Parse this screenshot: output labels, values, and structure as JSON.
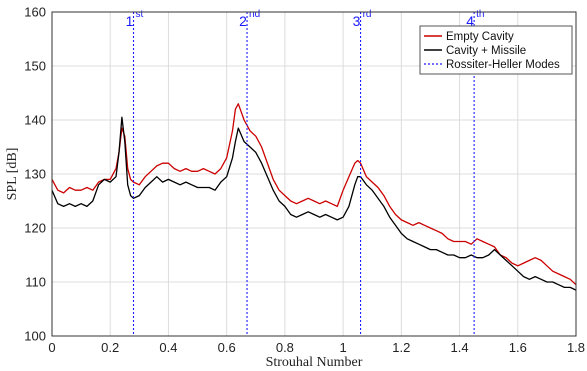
{
  "chart_data": {
    "type": "line",
    "xlabel": "Strouhal Number",
    "ylabel": "SPL [dB]",
    "xlim": [
      0,
      1.8
    ],
    "ylim": [
      100,
      160
    ],
    "xticks": [
      "0",
      "0.2",
      "0.4",
      "0.6",
      "0.8",
      "1",
      "1.2",
      "1.4",
      "1.6",
      "1.8"
    ],
    "yticks": [
      "100",
      "110",
      "120",
      "130",
      "140",
      "150",
      "160"
    ],
    "grid": true,
    "legend_position": "top-right",
    "series": [
      {
        "name": "Empty Cavity",
        "color": "#cc0000",
        "x": [
          0,
          0.02,
          0.04,
          0.06,
          0.08,
          0.1,
          0.12,
          0.14,
          0.16,
          0.18,
          0.2,
          0.22,
          0.23,
          0.24,
          0.25,
          0.26,
          0.27,
          0.28,
          0.3,
          0.32,
          0.34,
          0.36,
          0.38,
          0.4,
          0.42,
          0.44,
          0.46,
          0.48,
          0.5,
          0.52,
          0.54,
          0.56,
          0.58,
          0.6,
          0.62,
          0.63,
          0.64,
          0.66,
          0.68,
          0.7,
          0.72,
          0.74,
          0.76,
          0.78,
          0.8,
          0.82,
          0.84,
          0.86,
          0.88,
          0.9,
          0.92,
          0.94,
          0.96,
          0.98,
          1.0,
          1.02,
          1.04,
          1.05,
          1.06,
          1.08,
          1.1,
          1.12,
          1.14,
          1.16,
          1.18,
          1.2,
          1.22,
          1.24,
          1.26,
          1.28,
          1.3,
          1.32,
          1.34,
          1.36,
          1.38,
          1.4,
          1.42,
          1.44,
          1.46,
          1.48,
          1.5,
          1.52,
          1.54,
          1.56,
          1.58,
          1.6,
          1.62,
          1.64,
          1.66,
          1.68,
          1.7,
          1.72,
          1.74,
          1.76,
          1.78,
          1.8
        ],
        "y": [
          129,
          127,
          126.5,
          127.5,
          127,
          127,
          127.5,
          127,
          128.5,
          129,
          129,
          131,
          134,
          138.5,
          137,
          131,
          129,
          128.5,
          128,
          129.5,
          130.5,
          131.5,
          132,
          132,
          131,
          130.5,
          131,
          130.5,
          130.5,
          131,
          130.5,
          130,
          131,
          133,
          138,
          142,
          143,
          140,
          138,
          137,
          135,
          132,
          129,
          127,
          126,
          125,
          124.5,
          125,
          125.5,
          125,
          124.5,
          125,
          124.5,
          124,
          127,
          129.5,
          132,
          132.5,
          132,
          129.5,
          128.5,
          127.5,
          126,
          124,
          122.5,
          121.5,
          121,
          120.5,
          121,
          120.5,
          120,
          119.5,
          119,
          118,
          117.5,
          117.5,
          117.5,
          117,
          118,
          117.5,
          117,
          116.5,
          115,
          114.5,
          113.5,
          113,
          113.5,
          114,
          114.5,
          114,
          113,
          112,
          111.5,
          111,
          110.5,
          109.5
        ]
      },
      {
        "name": "Cavity + Missile",
        "color": "#000000",
        "x": [
          0,
          0.02,
          0.04,
          0.06,
          0.08,
          0.1,
          0.12,
          0.14,
          0.16,
          0.18,
          0.2,
          0.22,
          0.23,
          0.24,
          0.25,
          0.26,
          0.27,
          0.28,
          0.3,
          0.32,
          0.34,
          0.36,
          0.38,
          0.4,
          0.42,
          0.44,
          0.46,
          0.48,
          0.5,
          0.52,
          0.54,
          0.56,
          0.58,
          0.6,
          0.62,
          0.63,
          0.64,
          0.66,
          0.68,
          0.7,
          0.72,
          0.74,
          0.76,
          0.78,
          0.8,
          0.82,
          0.84,
          0.86,
          0.88,
          0.9,
          0.92,
          0.94,
          0.96,
          0.98,
          1.0,
          1.02,
          1.04,
          1.05,
          1.06,
          1.08,
          1.1,
          1.12,
          1.14,
          1.16,
          1.18,
          1.2,
          1.22,
          1.24,
          1.26,
          1.28,
          1.3,
          1.32,
          1.34,
          1.36,
          1.38,
          1.4,
          1.42,
          1.44,
          1.46,
          1.48,
          1.5,
          1.52,
          1.54,
          1.56,
          1.58,
          1.6,
          1.62,
          1.64,
          1.66,
          1.68,
          1.7,
          1.72,
          1.74,
          1.76,
          1.78,
          1.8
        ],
        "y": [
          127,
          124.5,
          124,
          124.5,
          124,
          124.5,
          124,
          125,
          128,
          129,
          128.5,
          129.5,
          134,
          140.5,
          136,
          128,
          126,
          125.5,
          126,
          127.5,
          128.5,
          129.5,
          128.5,
          129,
          128.5,
          128,
          128.5,
          128,
          127.5,
          127.5,
          127.5,
          127,
          128.5,
          129.5,
          133,
          136,
          138.5,
          136,
          135,
          134,
          132,
          129.5,
          127,
          125,
          124,
          122.5,
          122,
          122.5,
          123,
          122.5,
          122,
          122.5,
          122,
          121.5,
          122,
          124,
          128,
          129.5,
          129.5,
          128,
          127,
          125.5,
          124,
          122,
          120.5,
          119,
          118,
          117.5,
          117,
          116.5,
          116,
          116,
          115.5,
          115,
          115,
          114.5,
          114.5,
          115,
          114.5,
          114.5,
          115,
          116,
          115,
          114,
          113,
          112,
          111,
          110.5,
          111,
          110.5,
          110,
          110,
          109.5,
          109,
          109,
          108.5
        ]
      }
    ],
    "modes": {
      "name": "Rossiter-Heller Modes",
      "color": "#1a1aff",
      "x": [
        0.28,
        0.67,
        1.06,
        1.45
      ],
      "labels": [
        "1",
        "2",
        "3",
        "4"
      ],
      "sups": [
        "st",
        "nd",
        "rd",
        "th"
      ]
    }
  }
}
